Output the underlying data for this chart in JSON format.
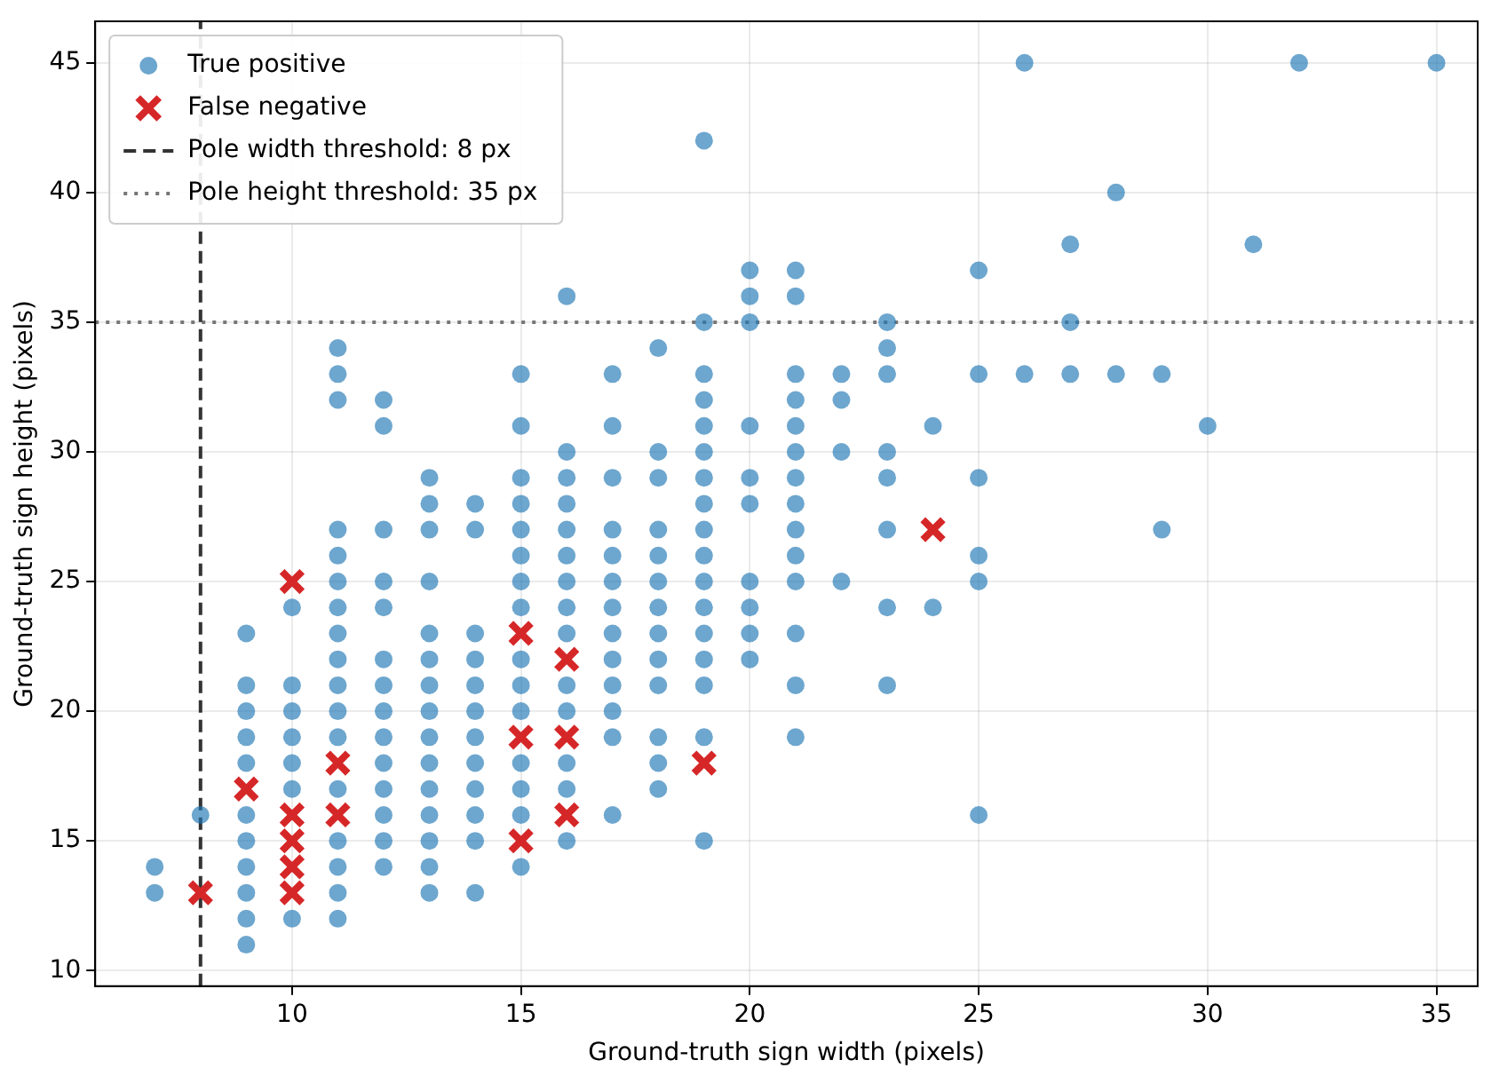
{
  "chart_data": {
    "type": "scatter",
    "xlabel": "Ground-truth sign width (pixels)",
    "ylabel": "Ground-truth sign height (pixels)",
    "xlim": [
      5.7,
      35.9
    ],
    "xticks": [
      10,
      15,
      20,
      25,
      30,
      35
    ],
    "ylim": [
      9.4,
      46.6
    ],
    "yticks": [
      10,
      15,
      20,
      25,
      30,
      35,
      40,
      45
    ],
    "grid": true,
    "legend": "top left",
    "series": [
      {
        "name": "True positive",
        "color": "#1f77b4",
        "marker": "circle",
        "x": [
          7,
          7,
          8,
          9,
          9,
          9,
          9,
          9,
          9,
          9,
          9,
          9,
          9,
          9,
          10,
          10,
          10,
          10,
          10,
          10,
          10,
          11,
          11,
          11,
          11,
          11,
          11,
          11,
          11,
          11,
          11,
          11,
          11,
          11,
          11,
          11,
          11,
          11,
          12,
          12,
          12,
          12,
          12,
          12,
          12,
          12,
          12,
          12,
          12,
          12,
          12,
          12,
          13,
          13,
          13,
          13,
          13,
          13,
          13,
          13,
          13,
          13,
          13,
          13,
          13,
          13,
          13,
          14,
          14,
          14,
          14,
          14,
          14,
          14,
          14,
          14,
          14,
          14,
          14,
          15,
          15,
          15,
          15,
          15,
          15,
          15,
          15,
          15,
          15,
          15,
          15,
          15,
          15,
          15,
          16,
          16,
          16,
          16,
          16,
          16,
          16,
          16,
          16,
          16,
          16,
          16,
          16,
          16,
          17,
          17,
          17,
          17,
          17,
          17,
          17,
          17,
          17,
          17,
          17,
          17,
          17,
          18,
          18,
          18,
          18,
          18,
          18,
          18,
          18,
          18,
          18,
          18,
          18,
          18,
          19,
          19,
          19,
          19,
          19,
          19,
          19,
          19,
          19,
          19,
          19,
          19,
          19,
          19,
          19,
          19,
          19,
          20,
          20,
          20,
          20,
          20,
          20,
          20,
          20,
          20,
          20,
          21,
          21,
          21,
          21,
          21,
          21,
          21,
          21,
          21,
          21,
          21,
          21,
          21,
          21,
          22,
          22,
          22,
          22,
          23,
          23,
          23,
          23,
          23,
          23,
          23,
          23,
          24,
          24,
          25,
          25,
          25,
          25,
          25,
          25,
          26,
          26,
          27,
          27,
          27,
          28,
          28,
          29,
          29,
          30,
          31,
          32,
          35
        ],
        "values": [
          14,
          13,
          16,
          23,
          21,
          20,
          19,
          18,
          16,
          15,
          14,
          13,
          12,
          11,
          24,
          21,
          20,
          19,
          18,
          17,
          12,
          34,
          33,
          32,
          27,
          26,
          25,
          24,
          23,
          22,
          21,
          20,
          19,
          17,
          15,
          14,
          13,
          12,
          32,
          31,
          27,
          25,
          24,
          22,
          21,
          20,
          19,
          18,
          17,
          16,
          15,
          14,
          29,
          28,
          27,
          25,
          23,
          22,
          21,
          20,
          19,
          18,
          17,
          16,
          15,
          14,
          13,
          28,
          27,
          23,
          22,
          21,
          20,
          19,
          18,
          17,
          16,
          15,
          13,
          33,
          31,
          29,
          28,
          27,
          26,
          25,
          24,
          22,
          21,
          20,
          18,
          17,
          16,
          14,
          36,
          30,
          29,
          28,
          27,
          26,
          25,
          24,
          23,
          21,
          20,
          18,
          17,
          15,
          33,
          31,
          29,
          27,
          26,
          25,
          24,
          23,
          22,
          21,
          20,
          19,
          16,
          34,
          30,
          29,
          27,
          26,
          25,
          24,
          23,
          22,
          21,
          19,
          18,
          17,
          42,
          35,
          33,
          32,
          31,
          30,
          29,
          28,
          27,
          26,
          25,
          24,
          23,
          22,
          21,
          19,
          15,
          37,
          36,
          35,
          31,
          29,
          28,
          25,
          24,
          23,
          22,
          37,
          36,
          33,
          32,
          31,
          30,
          29,
          28,
          27,
          26,
          25,
          23,
          21,
          19,
          33,
          32,
          30,
          25,
          35,
          34,
          33,
          30,
          29,
          27,
          24,
          21,
          31,
          24,
          37,
          33,
          29,
          26,
          25,
          16,
          45,
          33,
          38,
          35,
          33,
          40,
          33,
          33,
          27,
          31,
          38,
          45,
          45
        ]
      },
      {
        "name": "False negative",
        "color": "#d62728",
        "marker": "cross",
        "x": [
          8,
          9,
          10,
          10,
          10,
          10,
          10,
          11,
          11,
          15,
          15,
          15,
          16,
          16,
          16,
          19,
          24
        ],
        "values": [
          13,
          17,
          25,
          16,
          15,
          14,
          13,
          18,
          16,
          23,
          19,
          15,
          22,
          19,
          16,
          18,
          27
        ]
      }
    ],
    "ref_lines": [
      {
        "axis": "x",
        "value": 8,
        "label": "Pole width threshold: 8 px",
        "color": "#333333",
        "line_style": "dashed"
      },
      {
        "axis": "y",
        "value": 35,
        "label": "Pole height threshold: 35 px",
        "color": "#777777",
        "line_style": "dotted"
      }
    ]
  }
}
